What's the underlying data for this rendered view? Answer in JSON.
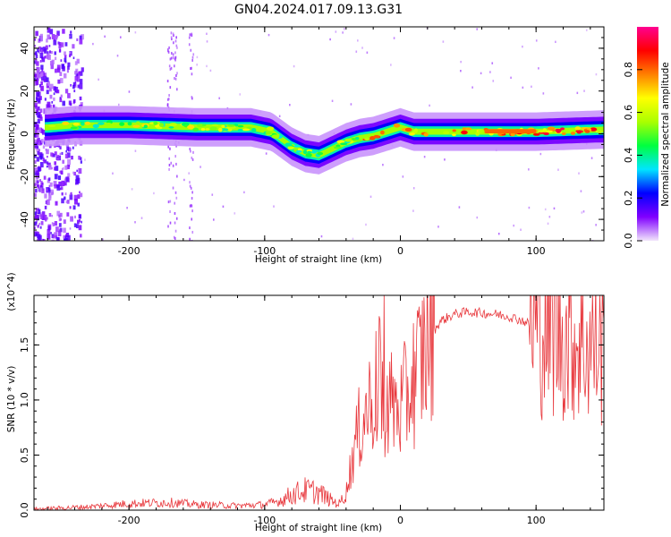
{
  "title": "GN04.2024.017.09.13.G31",
  "chart_data": [
    {
      "type": "heatmap",
      "xlabel": "Height of straight line (km)",
      "ylabel": "Frequency (Hz)",
      "xlim": [
        -270,
        150
      ],
      "ylim": [
        -50,
        50
      ],
      "xticks": [
        -200,
        -100,
        0,
        100
      ],
      "yticks": [
        -40,
        -20,
        0,
        20,
        40
      ],
      "colorbar": {
        "label": "Normalized spectral amplitude",
        "range": [
          0.0,
          1.0
        ],
        "ticks": [
          0.0,
          0.2,
          0.4,
          0.6,
          0.8
        ],
        "colors": [
          "#f2e6fb",
          "#8000ff",
          "#0000ff",
          "#00e5ff",
          "#00ff40",
          "#aaff00",
          "#ffff00",
          "#ff8000",
          "#ff0000",
          "#ff0090"
        ]
      },
      "ridge": {
        "x": [
          -260,
          -240,
          -200,
          -150,
          -110,
          -95,
          -80,
          -70,
          -60,
          -50,
          -40,
          -30,
          -20,
          -10,
          0,
          10,
          50,
          100,
          150
        ],
        "frequency": [
          3,
          4,
          4,
          3,
          3,
          1,
          -6,
          -9,
          -10,
          -7,
          -4,
          -2,
          -1,
          1,
          3,
          1,
          1,
          1,
          2
        ]
      }
    },
    {
      "type": "line",
      "xlabel": "Height of straight line (km)",
      "ylabel": "SNR (10 * v/v)",
      "y_multiplier": "(x10^4)",
      "xlim": [
        -270,
        150
      ],
      "ylim": [
        0,
        1.95
      ],
      "xticks": [
        -200,
        -100,
        0,
        100
      ],
      "yticks": [
        0.0,
        0.5,
        1.0,
        1.5
      ],
      "line_color": "#e8383d",
      "envelope": {
        "x": [
          -270,
          -230,
          -200,
          -170,
          -150,
          -120,
          -100,
          -90,
          -80,
          -70,
          -60,
          -50,
          -45,
          -40,
          -35,
          -30,
          -25,
          -20,
          -15,
          -10,
          -5,
          0,
          5,
          10,
          15,
          20,
          30,
          40,
          50,
          60,
          70,
          80,
          90,
          100,
          110,
          120,
          130,
          140,
          150
        ],
        "values": [
          0.01,
          0.03,
          0.06,
          0.07,
          0.05,
          0.04,
          0.05,
          0.08,
          0.14,
          0.18,
          0.16,
          0.08,
          0.06,
          0.15,
          0.5,
          0.75,
          0.9,
          1.05,
          1.15,
          1.0,
          0.95,
          0.9,
          1.05,
          1.2,
          1.35,
          1.55,
          1.72,
          1.78,
          1.8,
          1.79,
          1.78,
          1.76,
          1.72,
          1.66,
          1.62,
          1.58,
          1.54,
          1.5,
          1.46
        ]
      }
    }
  ]
}
